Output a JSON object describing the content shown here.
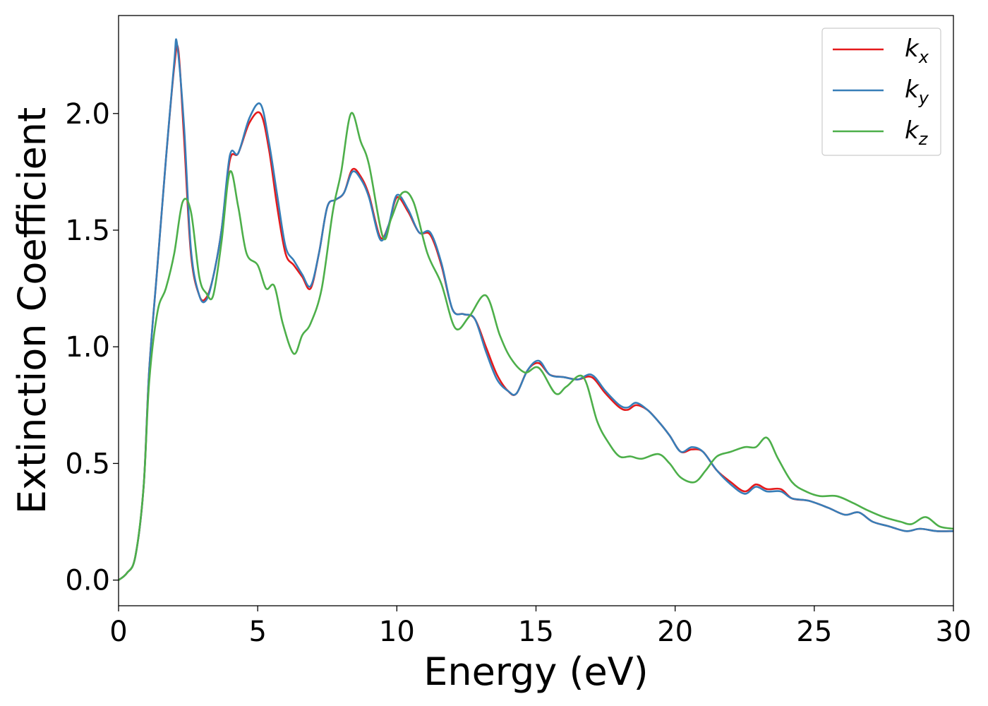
{
  "chart_data": {
    "type": "line",
    "title": "",
    "xlabel": "Energy (eV)",
    "ylabel": "Extinction Coefficient",
    "xlim": [
      0,
      30
    ],
    "ylim": [
      -0.11,
      2.42
    ],
    "grid": false,
    "legend_position": "top-right",
    "x_ticks": [
      "0",
      "5",
      "10",
      "15",
      "20",
      "25",
      "30"
    ],
    "y_ticks": [
      "0.0",
      "0.5",
      "1.0",
      "1.5",
      "2.0"
    ],
    "series": [
      {
        "name": "k",
        "name_sub": "x",
        "color": "#e41a1c",
        "points": [
          [
            0,
            0
          ],
          [
            0.3,
            0.03
          ],
          [
            0.6,
            0.1
          ],
          [
            0.9,
            0.4
          ],
          [
            1.1,
            0.9
          ],
          [
            1.4,
            1.35
          ],
          [
            1.7,
            1.8
          ],
          [
            2.0,
            2.2
          ],
          [
            2.15,
            2.27
          ],
          [
            2.35,
            1.9
          ],
          [
            2.6,
            1.4
          ],
          [
            2.9,
            1.22
          ],
          [
            3.15,
            1.21
          ],
          [
            3.4,
            1.3
          ],
          [
            3.7,
            1.5
          ],
          [
            4.0,
            1.8
          ],
          [
            4.3,
            1.83
          ],
          [
            4.7,
            1.96
          ],
          [
            5.1,
            2.0
          ],
          [
            5.4,
            1.85
          ],
          [
            5.7,
            1.6
          ],
          [
            6.0,
            1.4
          ],
          [
            6.3,
            1.35
          ],
          [
            6.6,
            1.3
          ],
          [
            6.9,
            1.25
          ],
          [
            7.2,
            1.4
          ],
          [
            7.5,
            1.6
          ],
          [
            7.8,
            1.63
          ],
          [
            8.1,
            1.66
          ],
          [
            8.4,
            1.76
          ],
          [
            8.7,
            1.73
          ],
          [
            9.0,
            1.65
          ],
          [
            9.4,
            1.47
          ],
          [
            9.7,
            1.52
          ],
          [
            10.0,
            1.64
          ],
          [
            10.4,
            1.58
          ],
          [
            10.8,
            1.49
          ],
          [
            11.2,
            1.48
          ],
          [
            11.6,
            1.35
          ],
          [
            12.0,
            1.16
          ],
          [
            12.4,
            1.14
          ],
          [
            12.8,
            1.12
          ],
          [
            13.2,
            1.0
          ],
          [
            13.6,
            0.88
          ],
          [
            14.0,
            0.81
          ],
          [
            14.3,
            0.8
          ],
          [
            14.7,
            0.9
          ],
          [
            15.1,
            0.93
          ],
          [
            15.5,
            0.88
          ],
          [
            16.0,
            0.87
          ],
          [
            16.5,
            0.86
          ],
          [
            17.0,
            0.87
          ],
          [
            17.5,
            0.8
          ],
          [
            18.0,
            0.74
          ],
          [
            18.3,
            0.73
          ],
          [
            18.6,
            0.75
          ],
          [
            19.0,
            0.73
          ],
          [
            19.4,
            0.68
          ],
          [
            19.8,
            0.62
          ],
          [
            20.2,
            0.55
          ],
          [
            20.6,
            0.56
          ],
          [
            21.0,
            0.55
          ],
          [
            21.5,
            0.47
          ],
          [
            22.0,
            0.42
          ],
          [
            22.5,
            0.38
          ],
          [
            22.9,
            0.41
          ],
          [
            23.3,
            0.39
          ],
          [
            23.8,
            0.39
          ],
          [
            24.2,
            0.35
          ],
          [
            24.8,
            0.34
          ],
          [
            25.5,
            0.31
          ],
          [
            26.1,
            0.28
          ],
          [
            26.6,
            0.29
          ],
          [
            27.1,
            0.25
          ],
          [
            27.7,
            0.23
          ],
          [
            28.3,
            0.21
          ],
          [
            28.8,
            0.22
          ],
          [
            29.4,
            0.21
          ],
          [
            30,
            0.21
          ]
        ]
      },
      {
        "name": "k",
        "name_sub": "y",
        "color": "#377eb8",
        "points": [
          [
            0,
            0
          ],
          [
            0.3,
            0.03
          ],
          [
            0.6,
            0.1
          ],
          [
            0.9,
            0.4
          ],
          [
            1.1,
            0.9
          ],
          [
            1.4,
            1.35
          ],
          [
            1.7,
            1.8
          ],
          [
            2.0,
            2.22
          ],
          [
            2.1,
            2.3
          ],
          [
            2.35,
            1.95
          ],
          [
            2.6,
            1.42
          ],
          [
            2.9,
            1.22
          ],
          [
            3.15,
            1.2
          ],
          [
            3.4,
            1.3
          ],
          [
            3.7,
            1.5
          ],
          [
            4.0,
            1.82
          ],
          [
            4.3,
            1.83
          ],
          [
            4.7,
            1.98
          ],
          [
            5.1,
            2.04
          ],
          [
            5.4,
            1.88
          ],
          [
            5.7,
            1.65
          ],
          [
            6.0,
            1.43
          ],
          [
            6.3,
            1.37
          ],
          [
            6.6,
            1.31
          ],
          [
            6.9,
            1.26
          ],
          [
            7.2,
            1.4
          ],
          [
            7.5,
            1.6
          ],
          [
            7.8,
            1.63
          ],
          [
            8.1,
            1.66
          ],
          [
            8.4,
            1.75
          ],
          [
            8.7,
            1.72
          ],
          [
            9.0,
            1.64
          ],
          [
            9.4,
            1.46
          ],
          [
            9.7,
            1.52
          ],
          [
            10.0,
            1.65
          ],
          [
            10.4,
            1.59
          ],
          [
            10.8,
            1.49
          ],
          [
            11.2,
            1.49
          ],
          [
            11.6,
            1.36
          ],
          [
            12.0,
            1.16
          ],
          [
            12.4,
            1.14
          ],
          [
            12.8,
            1.12
          ],
          [
            13.2,
            0.98
          ],
          [
            13.6,
            0.86
          ],
          [
            14.0,
            0.81
          ],
          [
            14.3,
            0.8
          ],
          [
            14.7,
            0.9
          ],
          [
            15.1,
            0.94
          ],
          [
            15.5,
            0.88
          ],
          [
            16.0,
            0.87
          ],
          [
            16.5,
            0.86
          ],
          [
            17.0,
            0.88
          ],
          [
            17.5,
            0.81
          ],
          [
            18.0,
            0.75
          ],
          [
            18.3,
            0.74
          ],
          [
            18.6,
            0.76
          ],
          [
            19.0,
            0.73
          ],
          [
            19.4,
            0.68
          ],
          [
            19.8,
            0.62
          ],
          [
            20.2,
            0.55
          ],
          [
            20.6,
            0.57
          ],
          [
            21.0,
            0.55
          ],
          [
            21.5,
            0.47
          ],
          [
            22.0,
            0.41
          ],
          [
            22.5,
            0.37
          ],
          [
            22.9,
            0.4
          ],
          [
            23.3,
            0.38
          ],
          [
            23.8,
            0.38
          ],
          [
            24.2,
            0.35
          ],
          [
            24.8,
            0.34
          ],
          [
            25.5,
            0.31
          ],
          [
            26.1,
            0.28
          ],
          [
            26.6,
            0.29
          ],
          [
            27.1,
            0.25
          ],
          [
            27.7,
            0.23
          ],
          [
            28.3,
            0.21
          ],
          [
            28.8,
            0.22
          ],
          [
            29.4,
            0.21
          ],
          [
            30,
            0.21
          ]
        ]
      },
      {
        "name": "k",
        "name_sub": "z",
        "color": "#4daf4a",
        "points": [
          [
            0,
            0
          ],
          [
            0.3,
            0.03
          ],
          [
            0.6,
            0.1
          ],
          [
            0.9,
            0.4
          ],
          [
            1.1,
            0.85
          ],
          [
            1.4,
            1.15
          ],
          [
            1.7,
            1.25
          ],
          [
            2.0,
            1.4
          ],
          [
            2.3,
            1.62
          ],
          [
            2.6,
            1.58
          ],
          [
            2.9,
            1.3
          ],
          [
            3.15,
            1.23
          ],
          [
            3.4,
            1.22
          ],
          [
            3.7,
            1.45
          ],
          [
            4.0,
            1.75
          ],
          [
            4.3,
            1.6
          ],
          [
            4.6,
            1.4
          ],
          [
            5.0,
            1.35
          ],
          [
            5.3,
            1.25
          ],
          [
            5.6,
            1.26
          ],
          [
            5.9,
            1.1
          ],
          [
            6.3,
            0.97
          ],
          [
            6.6,
            1.05
          ],
          [
            6.9,
            1.1
          ],
          [
            7.3,
            1.25
          ],
          [
            7.7,
            1.58
          ],
          [
            8.0,
            1.75
          ],
          [
            8.35,
            2.0
          ],
          [
            8.7,
            1.88
          ],
          [
            9.0,
            1.78
          ],
          [
            9.5,
            1.47
          ],
          [
            9.8,
            1.55
          ],
          [
            10.2,
            1.66
          ],
          [
            10.6,
            1.62
          ],
          [
            11.1,
            1.4
          ],
          [
            11.6,
            1.27
          ],
          [
            12.1,
            1.08
          ],
          [
            12.6,
            1.13
          ],
          [
            13.2,
            1.22
          ],
          [
            13.7,
            1.05
          ],
          [
            14.1,
            0.95
          ],
          [
            14.6,
            0.89
          ],
          [
            15.1,
            0.91
          ],
          [
            15.7,
            0.8
          ],
          [
            16.1,
            0.83
          ],
          [
            16.7,
            0.87
          ],
          [
            17.2,
            0.68
          ],
          [
            17.6,
            0.59
          ],
          [
            18.0,
            0.53
          ],
          [
            18.4,
            0.53
          ],
          [
            18.8,
            0.52
          ],
          [
            19.4,
            0.54
          ],
          [
            19.8,
            0.5
          ],
          [
            20.2,
            0.44
          ],
          [
            20.7,
            0.42
          ],
          [
            21.1,
            0.47
          ],
          [
            21.5,
            0.53
          ],
          [
            22.0,
            0.55
          ],
          [
            22.5,
            0.57
          ],
          [
            22.9,
            0.57
          ],
          [
            23.3,
            0.61
          ],
          [
            23.7,
            0.52
          ],
          [
            24.2,
            0.42
          ],
          [
            24.7,
            0.38
          ],
          [
            25.2,
            0.36
          ],
          [
            25.8,
            0.36
          ],
          [
            26.4,
            0.33
          ],
          [
            26.9,
            0.3
          ],
          [
            27.5,
            0.27
          ],
          [
            28.1,
            0.25
          ],
          [
            28.5,
            0.24
          ],
          [
            29.0,
            0.27
          ],
          [
            29.5,
            0.23
          ],
          [
            30,
            0.22
          ]
        ]
      }
    ]
  }
}
